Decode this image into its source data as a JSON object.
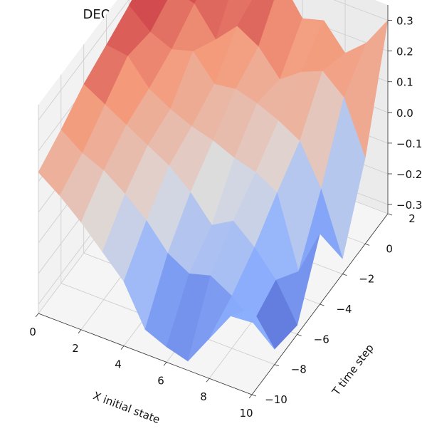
{
  "chart_data": {
    "type": "surface",
    "title": "DEQ error ($F(X, T)$: recovery probability)",
    "title_display": "DEQ error (F(X, T): recovery probability)",
    "xlabel": "X initial state",
    "ylabel": "T time step",
    "zlabel": "",
    "xlim": [
      0,
      10
    ],
    "ylim": [
      -10,
      2
    ],
    "zlim": [
      -0.33,
      0.35
    ],
    "xticks": [
      "0",
      "2",
      "4",
      "6",
      "8",
      "10"
    ],
    "yticks": [
      "−10",
      "−8",
      "−6",
      "−4",
      "−2",
      "0",
      "2"
    ],
    "zticks": [
      "−0.3",
      "−0.2",
      "−0.1",
      "0.0",
      "0.1",
      "0.2",
      "0.3"
    ],
    "colormap": "coolwarm",
    "grid": true,
    "surface_x": [
      0,
      1,
      2,
      3,
      4,
      5,
      6,
      7,
      8,
      9,
      10
    ],
    "surface_y": [
      -10,
      -8,
      -6,
      -4,
      -2,
      0,
      2
    ],
    "surface_z": [
      [
        0.13,
        0.17,
        0.22,
        0.25,
        0.28,
        0.32,
        0.33
      ],
      [
        0.08,
        0.12,
        0.18,
        0.24,
        0.22,
        0.26,
        0.27
      ],
      [
        0.02,
        0.09,
        0.14,
        0.16,
        0.19,
        0.24,
        0.28
      ],
      [
        -0.05,
        0.04,
        0.1,
        0.12,
        0.21,
        0.15,
        0.28
      ],
      [
        -0.12,
        -0.02,
        0.06,
        0.09,
        0.13,
        0.22,
        0.25
      ],
      [
        -0.25,
        -0.1,
        0.0,
        0.07,
        0.14,
        0.18,
        0.3
      ],
      [
        -0.28,
        -0.14,
        -0.08,
        0.04,
        0.12,
        0.1,
        0.2
      ],
      [
        -0.3,
        -0.12,
        -0.04,
        0.02,
        0.09,
        0.15,
        0.22
      ],
      [
        -0.2,
        -0.16,
        -0.1,
        -0.02,
        0.05,
        0.18,
        0.14
      ],
      [
        -0.1,
        -0.22,
        -0.18,
        -0.25,
        -0.08,
        0.12,
        0.2
      ],
      [
        -0.05,
        -0.28,
        -0.3,
        -0.1,
        -0.28,
        -0.05,
        0.3
      ]
    ]
  }
}
